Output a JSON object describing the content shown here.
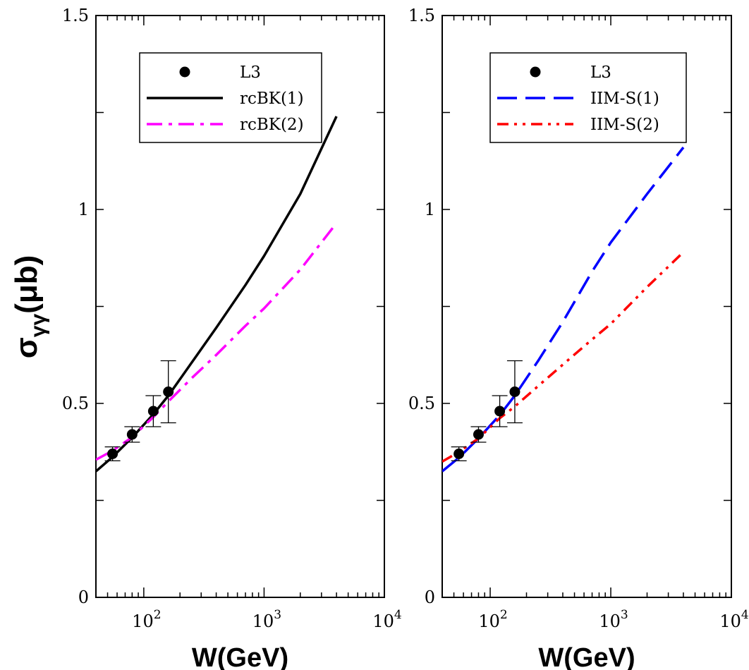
{
  "ylabel": {
    "main": "σ",
    "sub": "γγ",
    "unit": "(μb)"
  },
  "chart_data": [
    {
      "type": "line",
      "xlabel": "W(GeV)",
      "xscale": "log",
      "xlim": [
        40,
        10000
      ],
      "ylim": [
        0,
        1.5
      ],
      "yticks": [
        "0",
        "0.5",
        "1",
        "1.5"
      ],
      "xticks": [
        {
          "base": "10",
          "exp": "2"
        },
        {
          "base": "10",
          "exp": "3"
        },
        {
          "base": "10",
          "exp": "4"
        }
      ],
      "legend_position": "top-center",
      "data_points": {
        "name": "L3",
        "x": [
          55,
          80,
          120,
          160
        ],
        "y": [
          0.37,
          0.42,
          0.48,
          0.53
        ],
        "err": [
          0.018,
          0.02,
          0.04,
          0.08
        ],
        "color": "#000000"
      },
      "series": [
        {
          "name": "rcBK(1)",
          "style": "solid",
          "color": "#000000",
          "x": [
            40,
            55,
            80,
            120,
            160,
            250,
            400,
            700,
            1000,
            2000,
            4000
          ],
          "y": [
            0.325,
            0.362,
            0.412,
            0.472,
            0.52,
            0.605,
            0.695,
            0.805,
            0.88,
            1.04,
            1.24
          ]
        },
        {
          "name": "rcBK(2)",
          "style": "dashdot",
          "color": "#ff00ff",
          "x": [
            40,
            55,
            80,
            120,
            160,
            250,
            400,
            700,
            1000,
            2000,
            4000
          ],
          "y": [
            0.355,
            0.378,
            0.413,
            0.465,
            0.505,
            0.565,
            0.625,
            0.7,
            0.745,
            0.845,
            0.965
          ]
        }
      ]
    },
    {
      "type": "line",
      "xlabel": "W(GeV)",
      "xscale": "log",
      "xlim": [
        40,
        10000
      ],
      "ylim": [
        0,
        1.5
      ],
      "yticks": [
        "0",
        "0.5",
        "1",
        "1.5"
      ],
      "xticks": [
        {
          "base": "10",
          "exp": "2"
        },
        {
          "base": "10",
          "exp": "3"
        },
        {
          "base": "10",
          "exp": "4"
        }
      ],
      "legend_position": "top-center",
      "data_points": {
        "name": "L3",
        "x": [
          55,
          80,
          120,
          160
        ],
        "y": [
          0.37,
          0.42,
          0.48,
          0.53
        ],
        "err": [
          0.018,
          0.02,
          0.04,
          0.08
        ],
        "color": "#000000"
      },
      "series": [
        {
          "name": "IIM-S(1)",
          "style": "dashed",
          "color": "#0000ff",
          "x": [
            40,
            55,
            80,
            120,
            160,
            250,
            400,
            700,
            1000,
            2000,
            4000
          ],
          "y": [
            0.325,
            0.36,
            0.41,
            0.47,
            0.52,
            0.61,
            0.71,
            0.84,
            0.915,
            1.04,
            1.16
          ]
        },
        {
          "name": "IIM-S(2)",
          "style": "dashdotdot",
          "color": "#ff0000",
          "x": [
            40,
            55,
            80,
            120,
            160,
            250,
            400,
            700,
            1000,
            2000,
            4000
          ],
          "y": [
            0.35,
            0.375,
            0.41,
            0.462,
            0.492,
            0.545,
            0.6,
            0.665,
            0.705,
            0.8,
            0.89
          ]
        }
      ]
    }
  ]
}
